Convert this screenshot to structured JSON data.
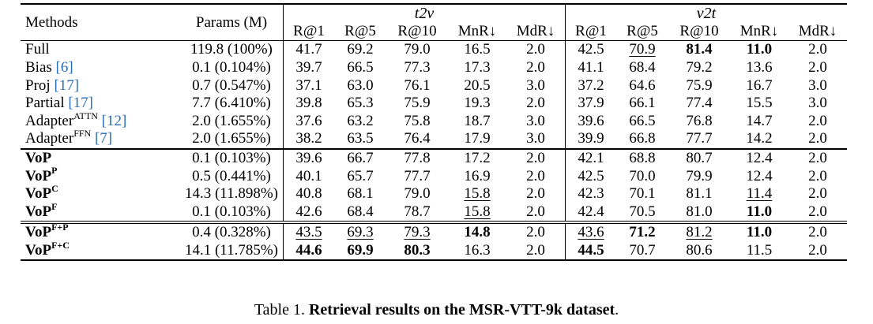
{
  "header": {
    "methods": "Methods",
    "params": "Params (M)",
    "group_t2v": "t2v",
    "group_v2t": "v2t",
    "metrics": [
      "R@1",
      "R@5",
      "R@10",
      "MnR↓",
      "MdR↓"
    ]
  },
  "rows": [
    {
      "name": "Full",
      "sup": "",
      "cite": "",
      "params": "119.8 (100%)",
      "bold_name": false,
      "t2v": [
        "41.7",
        "69.2",
        "79.0",
        "16.5",
        "2.0"
      ],
      "v2t": [
        "42.5",
        "70.9",
        "81.4",
        "11.0",
        "2.0"
      ],
      "t2v_style": [
        "",
        "",
        "",
        "",
        ""
      ],
      "v2t_style": [
        "",
        "u",
        "b",
        "b",
        ""
      ]
    },
    {
      "name": "Bias ",
      "sup": "",
      "cite": "[6]",
      "params": "0.1 (0.104%)",
      "bold_name": false,
      "t2v": [
        "39.7",
        "66.5",
        "77.3",
        "17.3",
        "2.0"
      ],
      "v2t": [
        "41.1",
        "68.4",
        "79.2",
        "13.6",
        "2.0"
      ],
      "t2v_style": [
        "",
        "",
        "",
        "",
        ""
      ],
      "v2t_style": [
        "",
        "",
        "",
        "",
        ""
      ]
    },
    {
      "name": "Proj ",
      "sup": "",
      "cite": "[17]",
      "params": "0.7 (0.547%)",
      "bold_name": false,
      "t2v": [
        "37.1",
        "63.0",
        "76.1",
        "20.5",
        "3.0"
      ],
      "v2t": [
        "37.2",
        "64.6",
        "75.9",
        "16.7",
        "3.0"
      ],
      "t2v_style": [
        "",
        "",
        "",
        "",
        ""
      ],
      "v2t_style": [
        "",
        "",
        "",
        "",
        ""
      ]
    },
    {
      "name": "Partial ",
      "sup": "",
      "cite": "[17]",
      "params": "7.7 (6.410%)",
      "bold_name": false,
      "t2v": [
        "39.8",
        "65.3",
        "75.9",
        "19.3",
        "2.0"
      ],
      "v2t": [
        "37.9",
        "66.1",
        "77.4",
        "15.5",
        "3.0"
      ],
      "t2v_style": [
        "",
        "",
        "",
        "",
        ""
      ],
      "v2t_style": [
        "",
        "",
        "",
        "",
        ""
      ]
    },
    {
      "name": "Adapter",
      "sup": "ATTN",
      "cite": "[12]",
      "params": "2.0 (1.655%)",
      "bold_name": false,
      "t2v": [
        "37.6",
        "63.2",
        "75.8",
        "18.7",
        "3.0"
      ],
      "v2t": [
        "39.6",
        "66.5",
        "76.8",
        "14.7",
        "2.0"
      ],
      "t2v_style": [
        "",
        "",
        "",
        "",
        ""
      ],
      "v2t_style": [
        "",
        "",
        "",
        "",
        ""
      ]
    },
    {
      "name": "Adapter",
      "sup": "FFN",
      "cite": "[7]",
      "params": "2.0 (1.655%)",
      "bold_name": false,
      "t2v": [
        "38.2",
        "63.5",
        "76.4",
        "17.9",
        "3.0"
      ],
      "v2t": [
        "39.9",
        "66.8",
        "77.7",
        "14.2",
        "2.0"
      ],
      "t2v_style": [
        "",
        "",
        "",
        "",
        ""
      ],
      "v2t_style": [
        "",
        "",
        "",
        "",
        ""
      ]
    },
    {
      "name": "VoP",
      "sup": "",
      "cite": "",
      "params": "0.1 (0.103%)",
      "bold_name": true,
      "t2v": [
        "39.6",
        "66.7",
        "77.8",
        "17.2",
        "2.0"
      ],
      "v2t": [
        "42.1",
        "68.8",
        "80.7",
        "12.4",
        "2.0"
      ],
      "t2v_style": [
        "",
        "",
        "",
        "",
        ""
      ],
      "v2t_style": [
        "",
        "",
        "",
        "",
        ""
      ]
    },
    {
      "name": "VoP",
      "sup": "P",
      "cite": "",
      "params": "0.5 (0.441%)",
      "bold_name": true,
      "t2v": [
        "40.1",
        "65.7",
        "77.7",
        "16.9",
        "2.0"
      ],
      "v2t": [
        "42.5",
        "70.0",
        "79.9",
        "12.4",
        "2.0"
      ],
      "t2v_style": [
        "",
        "",
        "",
        "",
        ""
      ],
      "v2t_style": [
        "",
        "",
        "",
        "",
        ""
      ]
    },
    {
      "name": "VoP",
      "sup": "C",
      "cite": "",
      "params": "14.3 (11.898%)",
      "bold_name": true,
      "t2v": [
        "40.8",
        "68.1",
        "79.0",
        "15.8",
        "2.0"
      ],
      "v2t": [
        "42.3",
        "70.1",
        "81.1",
        "11.4",
        "2.0"
      ],
      "t2v_style": [
        "",
        "",
        "",
        "u",
        ""
      ],
      "v2t_style": [
        "",
        "",
        "",
        "u",
        ""
      ]
    },
    {
      "name": "VoP",
      "sup": "F",
      "cite": "",
      "params": "0.1 (0.103%)",
      "bold_name": true,
      "t2v": [
        "42.6",
        "68.4",
        "78.7",
        "15.8",
        "2.0"
      ],
      "v2t": [
        "42.4",
        "70.5",
        "81.0",
        "11.0",
        "2.0"
      ],
      "t2v_style": [
        "",
        "",
        "",
        "u",
        ""
      ],
      "v2t_style": [
        "",
        "",
        "",
        "b",
        ""
      ]
    },
    {
      "name": "VoP",
      "sup": "F+P",
      "cite": "",
      "params": "0.4 (0.328%)",
      "bold_name": true,
      "t2v": [
        "43.5",
        "69.3",
        "79.3",
        "14.8",
        "2.0"
      ],
      "v2t": [
        "43.6",
        "71.2",
        "81.2",
        "11.0",
        "2.0"
      ],
      "t2v_style": [
        "u",
        "u",
        "u",
        "b",
        ""
      ],
      "v2t_style": [
        "u",
        "b",
        "u",
        "b",
        ""
      ]
    },
    {
      "name": "VoP",
      "sup": "F+C",
      "cite": "",
      "params": "14.1 (11.785%)",
      "bold_name": true,
      "t2v": [
        "44.6",
        "69.9",
        "80.3",
        "16.3",
        "2.0"
      ],
      "v2t": [
        "44.5",
        "70.7",
        "80.6",
        "11.5",
        "2.0"
      ],
      "t2v_style": [
        "b",
        "b",
        "b",
        "",
        ""
      ],
      "v2t_style": [
        "b",
        "",
        "",
        "",
        ""
      ]
    }
  ],
  "caption": {
    "prefix": "Table 1. ",
    "bold": "Retrieval results on the MSR-VTT-9k dataset",
    "suffix": "."
  }
}
